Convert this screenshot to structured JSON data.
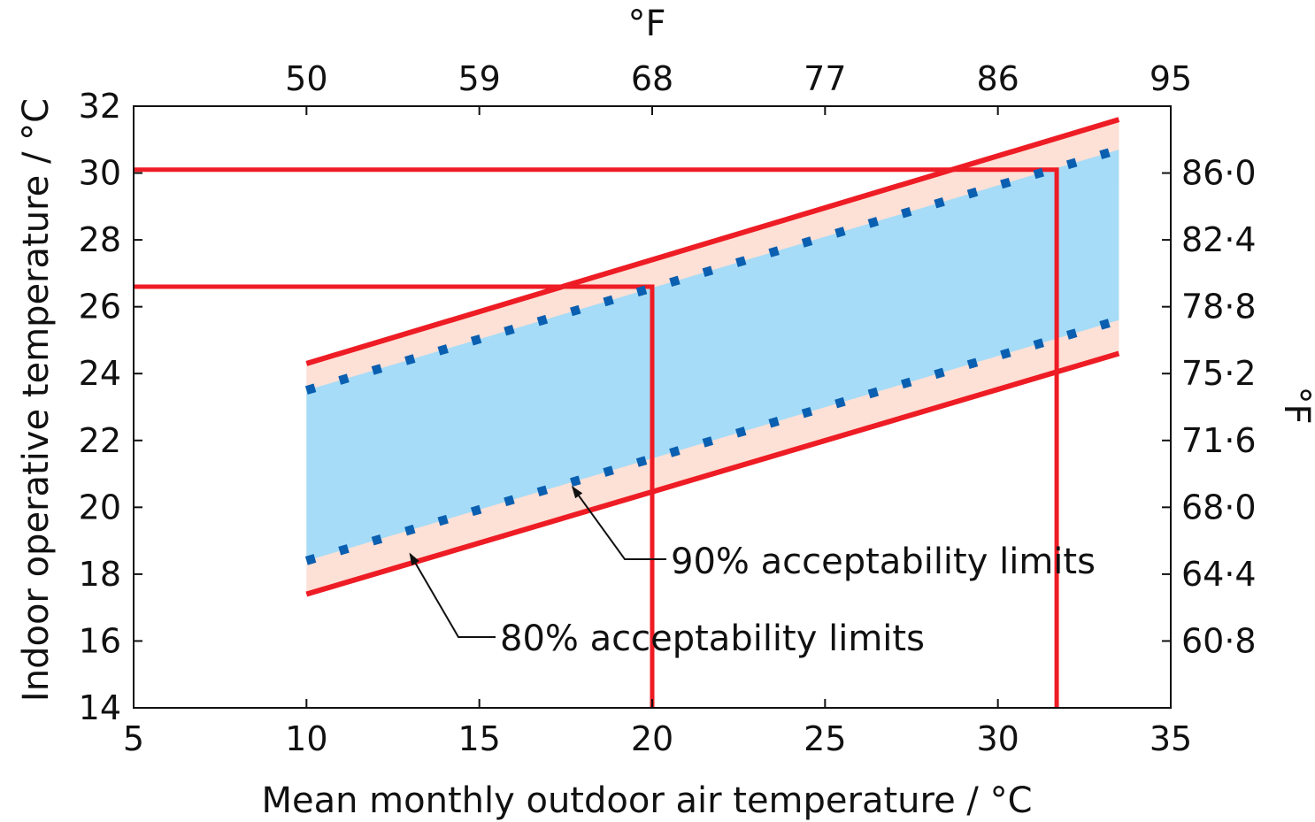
{
  "chart_data": {
    "type": "line",
    "title": "",
    "xlabel": "Mean monthly outdoor air temperature  / °C",
    "ylabel": "Indoor operative temperature / °C",
    "x2label": "°F",
    "y2label": "°F",
    "xlim": [
      5,
      35
    ],
    "ylim": [
      14,
      32
    ],
    "x_ticks": [
      "5",
      "10",
      "15",
      "20",
      "25",
      "30",
      "35"
    ],
    "y_ticks": [
      "14",
      "16",
      "18",
      "20",
      "22",
      "24",
      "26",
      "28",
      "30",
      "32"
    ],
    "x2_ticks": [
      {
        "label": "50",
        "at": 10
      },
      {
        "label": "59",
        "at": 15
      },
      {
        "label": "68",
        "at": 20
      },
      {
        "label": "77",
        "at": 25
      },
      {
        "label": "86",
        "at": 30
      },
      {
        "label": "95",
        "at": 35
      }
    ],
    "y2_ticks": [
      {
        "label": "60·8",
        "at": 16
      },
      {
        "label": "64·4",
        "at": 18
      },
      {
        "label": "68·0",
        "at": 20
      },
      {
        "label": "71·6",
        "at": 22
      },
      {
        "label": "75·2",
        "at": 24
      },
      {
        "label": "78·8",
        "at": 26
      },
      {
        "label": "82·4",
        "at": 28
      },
      {
        "label": "86·0",
        "at": 30
      }
    ],
    "series": [
      {
        "name": "80% acceptability limits",
        "role": "upper",
        "style": "solid",
        "color": "#ee1c24",
        "x": [
          10,
          33.5
        ],
        "y": [
          24.3,
          31.6
        ]
      },
      {
        "name": "80% acceptability limits",
        "role": "lower",
        "style": "solid",
        "color": "#ee1c24",
        "x": [
          10,
          33.5
        ],
        "y": [
          17.4,
          24.6
        ]
      },
      {
        "name": "90% acceptability limits",
        "role": "upper",
        "style": "dotted",
        "color": "#0a5fb0",
        "x": [
          10,
          33.5
        ],
        "y": [
          23.5,
          30.7
        ]
      },
      {
        "name": "90% acceptability limits",
        "role": "lower",
        "style": "dotted",
        "color": "#0a5fb0",
        "x": [
          10,
          33.5
        ],
        "y": [
          18.4,
          25.6
        ]
      }
    ],
    "reference_lines": [
      {
        "color": "#ee1c24",
        "points": [
          [
            5,
            26.6
          ],
          [
            20,
            26.6
          ],
          [
            20,
            14
          ]
        ]
      },
      {
        "color": "#ee1c24",
        "points": [
          [
            5,
            30.1
          ],
          [
            31.7,
            30.1
          ],
          [
            31.7,
            14
          ]
        ]
      }
    ],
    "annotations": [
      {
        "text": "90% acceptability limits",
        "arrow_to": [
          17.7,
          20.6
        ]
      },
      {
        "text": "80% acceptability limits",
        "arrow_to": [
          13.0,
          18.6
        ]
      }
    ],
    "colors": {
      "band_80": "#fde0d6",
      "band_90": "#a6dcf7",
      "limit_80": "#ee1c24",
      "limit_90": "#0a5fb0",
      "axis": "#111111"
    },
    "grid": false,
    "legend": "none"
  }
}
